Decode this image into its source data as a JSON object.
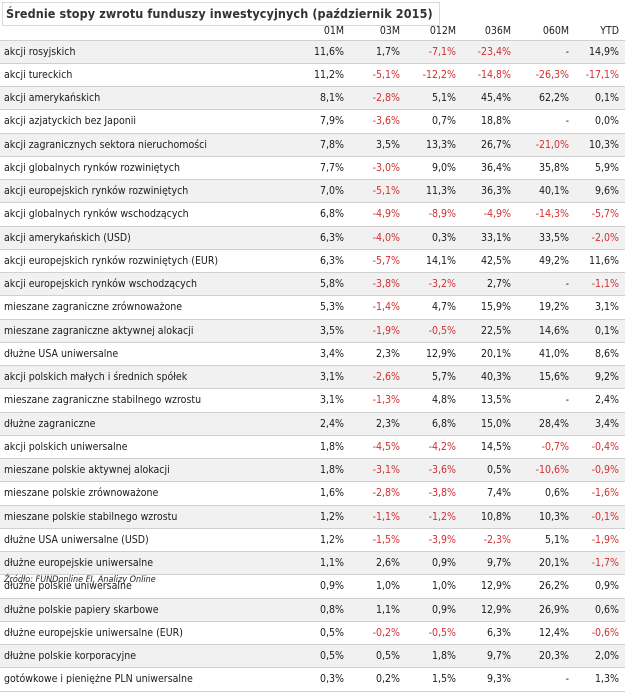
{
  "title": "Średnie stopy zwrotu funduszy inwestycyjnych (październik 2015)",
  "columns": [
    "",
    "01M",
    "03M",
    "012M",
    "036M",
    "060M",
    "YTD"
  ],
  "rows": [
    [
      "akcji rosyjskich",
      "11,6%",
      "1,7%",
      "-7,1%",
      "-23,4%",
      "-",
      "14,9%"
    ],
    [
      "akcji tureckich",
      "11,2%",
      "-5,1%",
      "-12,2%",
      "-14,8%",
      "-26,3%",
      "-17,1%"
    ],
    [
      "akcji amerykańskich",
      "8,1%",
      "-2,8%",
      "5,1%",
      "45,4%",
      "62,2%",
      "0,1%"
    ],
    [
      "akcji azjatyckich bez Japonii",
      "7,9%",
      "-3,6%",
      "0,7%",
      "18,8%",
      "-",
      "0,0%"
    ],
    [
      "akcji zagranicznych sektora nieruchomości",
      "7,8%",
      "3,5%",
      "13,3%",
      "26,7%",
      "-21,0%",
      "10,3%"
    ],
    [
      "akcji globalnych rynków rozwiniętych",
      "7,7%",
      "-3,0%",
      "9,0%",
      "36,4%",
      "35,8%",
      "5,9%"
    ],
    [
      "akcji europejskich rynków rozwiniętych",
      "7,0%",
      "-5,1%",
      "11,3%",
      "36,3%",
      "40,1%",
      "9,6%"
    ],
    [
      "akcji globalnych rynków wschodzących",
      "6,8%",
      "-4,9%",
      "-8,9%",
      "-4,9%",
      "-14,3%",
      "-5,7%"
    ],
    [
      "akcji amerykańskich (USD)",
      "6,3%",
      "-4,0%",
      "0,3%",
      "33,1%",
      "33,5%",
      "-2,0%"
    ],
    [
      "akcji europejskich rynków rozwiniętych (EUR)",
      "6,3%",
      "-5,7%",
      "14,1%",
      "42,5%",
      "49,2%",
      "11,6%"
    ],
    [
      "akcji europejskich rynków wschodzących",
      "5,8%",
      "-3,8%",
      "-3,2%",
      "2,7%",
      "-",
      "-1,1%"
    ],
    [
      "mieszane zagraniczne zrównoważone",
      "5,3%",
      "-1,4%",
      "4,7%",
      "15,9%",
      "19,2%",
      "3,1%"
    ],
    [
      "mieszane zagraniczne aktywnej alokacji",
      "3,5%",
      "-1,9%",
      "-0,5%",
      "22,5%",
      "14,6%",
      "0,1%"
    ],
    [
      "dłużne USA uniwersalne",
      "3,4%",
      "2,3%",
      "12,9%",
      "20,1%",
      "41,0%",
      "8,6%"
    ],
    [
      "akcji polskich małych i średnich spółek",
      "3,1%",
      "-2,6%",
      "5,7%",
      "40,3%",
      "15,6%",
      "9,2%"
    ],
    [
      "mieszane zagraniczne stabilnego wzrostu",
      "3,1%",
      "-1,3%",
      "4,8%",
      "13,5%",
      "-",
      "2,4%"
    ],
    [
      "dłużne zagraniczne",
      "2,4%",
      "2,3%",
      "6,8%",
      "15,0%",
      "28,4%",
      "3,4%"
    ],
    [
      "akcji polskich uniwersalne",
      "1,8%",
      "-4,5%",
      "-4,2%",
      "14,5%",
      "-0,7%",
      "-0,4%"
    ],
    [
      "mieszane polskie aktywnej alokacji",
      "1,8%",
      "-3,1%",
      "-3,6%",
      "0,5%",
      "-10,6%",
      "-0,9%"
    ],
    [
      "mieszane polskie zrównoważone",
      "1,6%",
      "-2,8%",
      "-3,8%",
      "7,4%",
      "0,6%",
      "-1,6%"
    ],
    [
      "mieszane polskie stabilnego wzrostu",
      "1,2%",
      "-1,1%",
      "-1,2%",
      "10,8%",
      "10,3%",
      "-0,1%"
    ],
    [
      "dłużne USA uniwersalne (USD)",
      "1,2%",
      "-1,5%",
      "-3,9%",
      "-2,3%",
      "5,1%",
      "-1,9%"
    ],
    [
      "dłużne europejskie uniwersalne",
      "1,1%",
      "2,6%",
      "0,9%",
      "9,7%",
      "20,1%",
      "-1,7%"
    ],
    [
      "dłużne polskie uniwersalne",
      "0,9%",
      "1,0%",
      "1,0%",
      "12,9%",
      "26,2%",
      "0,9%"
    ],
    [
      "dłużne polskie papiery skarbowe",
      "0,8%",
      "1,1%",
      "0,9%",
      "12,9%",
      "26,9%",
      "0,6%"
    ],
    [
      "dłużne europejskie uniwersalne (EUR)",
      "0,5%",
      "-0,2%",
      "-0,5%",
      "6,3%",
      "12,4%",
      "-0,6%"
    ],
    [
      "dłużne polskie korporacyjne",
      "0,5%",
      "0,5%",
      "1,8%",
      "9,7%",
      "20,3%",
      "2,0%"
    ],
    [
      "gotówkowe i pieniężne PLN uniwersalne",
      "0,3%",
      "0,2%",
      "1,5%",
      "9,3%",
      "-",
      "1,3%"
    ]
  ],
  "source": "Źródło: FUNDonline FI, Analizy Online",
  "colors": {
    "negative": "#d32f2f",
    "stripe": "#f1f1f1"
  }
}
